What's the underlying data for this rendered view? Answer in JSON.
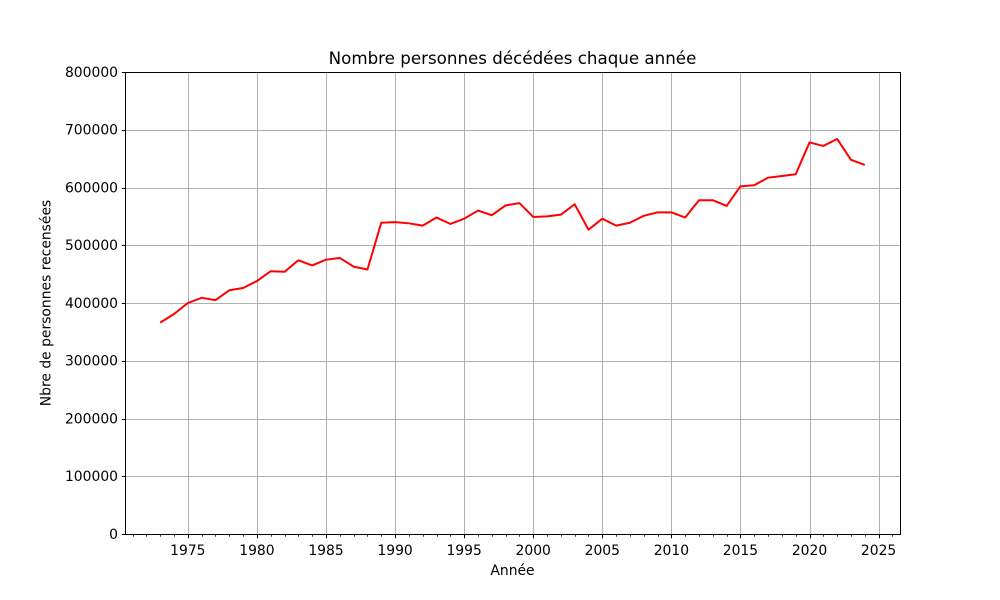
{
  "chart_data": {
    "type": "line",
    "title": "Nombre personnes décédées chaque année",
    "xlabel": "Année",
    "ylabel": "Nbre de personnes recensées",
    "x": [
      1973,
      1974,
      1975,
      1976,
      1977,
      1978,
      1979,
      1980,
      1981,
      1982,
      1983,
      1984,
      1985,
      1986,
      1987,
      1988,
      1989,
      1990,
      1991,
      1992,
      1993,
      1994,
      1995,
      1996,
      1997,
      1998,
      1999,
      2000,
      2001,
      2002,
      2003,
      2004,
      2005,
      2006,
      2007,
      2008,
      2009,
      2010,
      2011,
      2012,
      2013,
      2014,
      2015,
      2016,
      2017,
      2018,
      2019,
      2020,
      2021,
      2022,
      2023,
      2024
    ],
    "values": [
      366000,
      381000,
      400000,
      409000,
      405000,
      422000,
      426000,
      438000,
      455000,
      454000,
      474000,
      465000,
      475000,
      478000,
      463000,
      458000,
      539000,
      540000,
      538000,
      534000,
      548000,
      537000,
      546000,
      560000,
      552000,
      569000,
      573000,
      549000,
      550000,
      553000,
      571000,
      527000,
      546000,
      534000,
      539000,
      551000,
      557000,
      557000,
      548000,
      578000,
      578000,
      568000,
      602000,
      604000,
      617000,
      620000,
      623000,
      678000,
      672000,
      684000,
      648000,
      639000
    ],
    "xlim": [
      1970.45,
      2026.55
    ],
    "ylim": [
      0,
      800000
    ],
    "x_tick_labels": [
      "1975",
      "1980",
      "1985",
      "1990",
      "1995",
      "2000",
      "2005",
      "2010",
      "2015",
      "2020",
      "2025"
    ],
    "x_major_ticks": [
      1975,
      1980,
      1985,
      1990,
      1995,
      2000,
      2005,
      2010,
      2015,
      2020,
      2025
    ],
    "x_minor_tick_step": 1,
    "y_tick_labels": [
      "0",
      "100000",
      "200000",
      "300000",
      "400000",
      "500000",
      "600000",
      "700000",
      "800000"
    ],
    "y_major_ticks": [
      0,
      100000,
      200000,
      300000,
      400000,
      500000,
      600000,
      700000,
      800000
    ],
    "grid": true,
    "legend": false,
    "line_color": "#ff0000",
    "line_width": 2,
    "grid_color": "#b0b0b0",
    "spine_color": "#000000",
    "background_color": "#ffffff"
  }
}
